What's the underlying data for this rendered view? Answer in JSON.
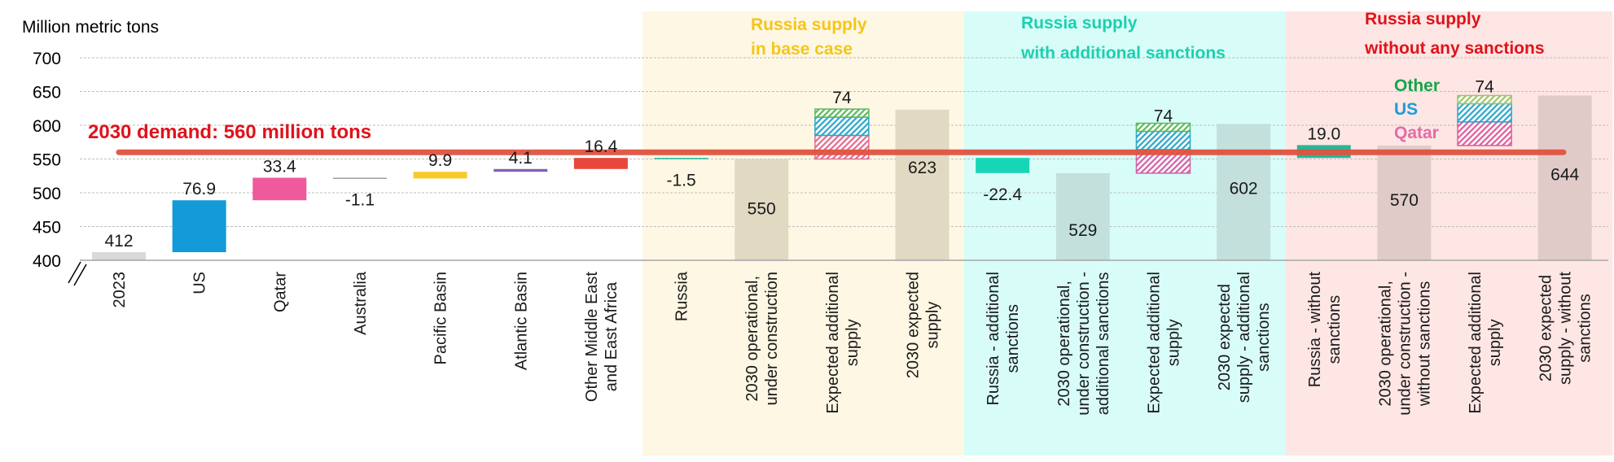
{
  "chart_data": {
    "type": "bar",
    "subtype": "waterfall",
    "ylabel": "Million metric tons",
    "ylim": [
      400,
      700
    ],
    "yticks": [
      "700",
      "650",
      "600",
      "550",
      "500",
      "450",
      "400"
    ],
    "grid": true,
    "axis_break": true,
    "demand": {
      "value": 560,
      "label": "2030 demand: 560 million tons",
      "color": "#e0533f"
    },
    "panels": [
      {
        "title_lines": [
          "Russia supply",
          "in base case"
        ],
        "title_color": "#f5c518",
        "bg": "#fdf7e3",
        "from_index": 7,
        "to_index": 10
      },
      {
        "title_lines": [
          "Russia supply",
          "with additional sanctions"
        ],
        "title_color": "#1ccfb0",
        "bg": "#d8fdf8",
        "from_index": 11,
        "to_index": 14
      },
      {
        "title_lines": [
          "Russia supply",
          "without any sanctions"
        ],
        "title_color": "#e0121b",
        "bg": "#fde6e4",
        "from_index": 15,
        "to_index": 18
      }
    ],
    "stack_legend": [
      {
        "label": "Other",
        "color": "#17a34a"
      },
      {
        "label": "US",
        "color": "#1e9bd7"
      },
      {
        "label": "Qatar",
        "color": "#e46aa6"
      }
    ],
    "bars": [
      {
        "category": [
          "2023"
        ],
        "kind": "total",
        "value": 412,
        "base": 400,
        "top": 412,
        "label": "412",
        "color": "#d9d9d9",
        "label_pos": "above"
      },
      {
        "category": [
          "US"
        ],
        "kind": "delta",
        "value": 76.9,
        "base": 412,
        "top": 488.9,
        "label": "76.9",
        "color": "#129bd8",
        "label_pos": "above"
      },
      {
        "category": [
          "Qatar"
        ],
        "kind": "delta",
        "value": 33.4,
        "base": 488.9,
        "top": 522.3,
        "label": "33.4",
        "color": "#ee5a9b",
        "label_pos": "above"
      },
      {
        "category": [
          "Australia"
        ],
        "kind": "delta",
        "value": -1.1,
        "base": 522.3,
        "top": 521.2,
        "label": "-1.1",
        "color": "#9e9e9e",
        "label_pos": "below"
      },
      {
        "category": [
          "Pacific Basin"
        ],
        "kind": "delta",
        "value": 9.9,
        "base": 521.2,
        "top": 531.1,
        "label": "9.9",
        "color": "#f7cb2e",
        "label_pos": "above"
      },
      {
        "category": [
          "Atlantic Basin"
        ],
        "kind": "delta",
        "value": 4.1,
        "base": 531.1,
        "top": 535.2,
        "label": "4.1",
        "color": "#8260b8",
        "label_pos": "above"
      },
      {
        "category": [
          "Other Middle East",
          "and East Africa"
        ],
        "kind": "delta",
        "value": 16.4,
        "base": 535.2,
        "top": 551.6,
        "label": "16.4",
        "color": "#e8473b",
        "label_pos": "above"
      },
      {
        "category": [
          "Russia"
        ],
        "kind": "delta",
        "value": -1.5,
        "base": 551.6,
        "top": 550.1,
        "label": "-1.5",
        "color": "#22b89a",
        "label_pos": "below"
      },
      {
        "category": [
          "2030 operational,",
          "under construction"
        ],
        "kind": "total",
        "value": 550,
        "base": 400,
        "top": 550,
        "label": "550",
        "color": "#e2d9c3",
        "label_pos": "inside"
      },
      {
        "category": [
          "Expected additional",
          "supply"
        ],
        "kind": "stack",
        "value": 74,
        "base": 550,
        "top": 624,
        "label": "74",
        "label_pos": "above",
        "segments": [
          {
            "name": "Qatar",
            "value": 35,
            "color": "#e46a8d"
          },
          {
            "name": "US",
            "value": 27,
            "color": "#29a6c9"
          },
          {
            "name": "Other",
            "value": 12,
            "color": "#5cb85c"
          }
        ]
      },
      {
        "category": [
          "2030 expected",
          "supply"
        ],
        "kind": "total",
        "value": 623,
        "base": 400,
        "top": 623,
        "label": "623",
        "color": "#e2d9c3",
        "label_pos": "inside"
      },
      {
        "category": [
          "Russia - additional",
          "sanctions"
        ],
        "kind": "delta",
        "value": -22.4,
        "base": 551.6,
        "top": 529.2,
        "label": "-22.4",
        "color": "#17d6b6",
        "label_pos": "below"
      },
      {
        "category": [
          "2030 operational,",
          "under construction -",
          "additional sanctions"
        ],
        "kind": "total",
        "value": 529,
        "base": 400,
        "top": 529,
        "label": "529",
        "color": "#c3e0dc",
        "label_pos": "inside"
      },
      {
        "category": [
          "Expected additional",
          "supply"
        ],
        "kind": "stack",
        "value": 74,
        "base": 529,
        "top": 603,
        "label": "74",
        "label_pos": "above",
        "segments": [
          {
            "name": "Qatar",
            "value": 35,
            "color": "#d060a8"
          },
          {
            "name": "US",
            "value": 27,
            "color": "#29a6c9"
          },
          {
            "name": "Other",
            "value": 12,
            "color": "#5cb85c"
          }
        ]
      },
      {
        "category": [
          "2030 expected",
          "supply - additional",
          "sanctions"
        ],
        "kind": "total",
        "value": 602,
        "base": 400,
        "top": 602,
        "label": "602",
        "color": "#c3e0dc",
        "label_pos": "inside"
      },
      {
        "category": [
          "Russia - without",
          "sanctions"
        ],
        "kind": "delta",
        "value": 19.0,
        "base": 551.6,
        "top": 570.6,
        "label": "19.0",
        "color": "#2ab597",
        "label_pos": "above"
      },
      {
        "category": [
          "2030 operational,",
          "under construction -",
          "without sanctions"
        ],
        "kind": "total",
        "value": 570,
        "base": 400,
        "top": 570,
        "label": "570",
        "color": "#e0cbc8",
        "label_pos": "inside"
      },
      {
        "category": [
          "Expected additional",
          "supply"
        ],
        "kind": "stack",
        "value": 74,
        "base": 570,
        "top": 644,
        "label": "74",
        "label_pos": "above",
        "segments": [
          {
            "name": "Qatar",
            "value": 35,
            "color": "#e05a9a"
          },
          {
            "name": "US",
            "value": 27,
            "color": "#29a6c9"
          },
          {
            "name": "Other",
            "value": 12,
            "color": "#9cc36a"
          }
        ]
      },
      {
        "category": [
          "2030 expected",
          "supply - without",
          "sanctions"
        ],
        "kind": "total",
        "value": 644,
        "base": 400,
        "top": 644,
        "label": "644",
        "color": "#e0cbc8",
        "label_pos": "inside"
      }
    ]
  }
}
